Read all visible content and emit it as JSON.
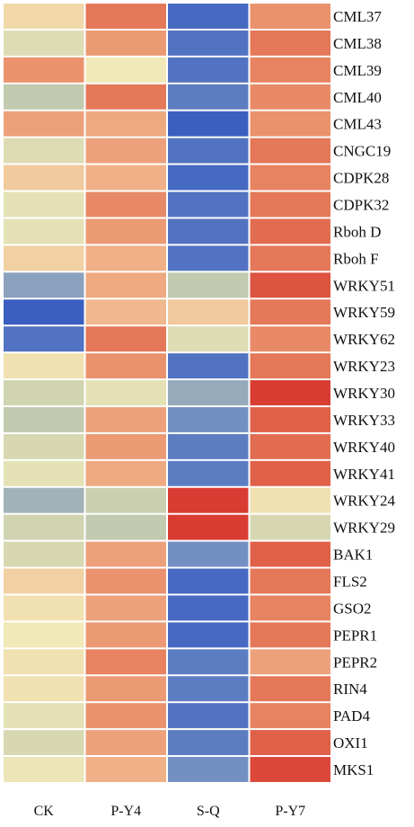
{
  "chart_data": {
    "type": "heatmap",
    "title": "",
    "xlabel": "",
    "ylabel": "",
    "columns": [
      "CK",
      "P-Y4",
      "S-Q",
      "P-Y7"
    ],
    "rows": [
      "CML37",
      "CML38",
      "CML39",
      "CML40",
      "CML43",
      "CNGC19",
      "CDPK28",
      "CDPK32",
      "Rboh D",
      "Rboh F",
      "WRKY51",
      "WRKY59",
      "WRKY62",
      "WRKY23",
      "WRKY30",
      "WRKY33",
      "WRKY40",
      "WRKY41",
      "WRKY24",
      "WRKY29",
      "BAK1",
      "FLS2",
      "GSO2",
      "PEPR1",
      "PEPR2",
      "RIN4",
      "PAD4",
      "OXI1",
      "MKS1"
    ],
    "value_range": [
      -1,
      1
    ],
    "colormap": [
      "#2f55c0",
      "#7c97c3",
      "#c6cdae",
      "#f1e9b8",
      "#f0b38a",
      "#e6805e",
      "#d6302a"
    ],
    "values": [
      [
        0.1,
        0.7,
        -0.9,
        0.55
      ],
      [
        -0.15,
        0.5,
        -0.85,
        0.7
      ],
      [
        0.55,
        0.0,
        -0.85,
        0.65
      ],
      [
        -0.35,
        0.7,
        -0.8,
        0.6
      ],
      [
        0.45,
        0.4,
        -0.95,
        0.55
      ],
      [
        -0.15,
        0.45,
        -0.85,
        0.7
      ],
      [
        0.2,
        0.35,
        -0.9,
        0.65
      ],
      [
        -0.1,
        0.6,
        -0.85,
        0.7
      ],
      [
        -0.1,
        0.5,
        -0.85,
        0.75
      ],
      [
        0.15,
        0.35,
        -0.85,
        0.7
      ],
      [
        -0.6,
        0.4,
        -0.35,
        0.85
      ],
      [
        -0.95,
        0.3,
        0.2,
        0.7
      ],
      [
        -0.85,
        0.7,
        -0.15,
        0.6
      ],
      [
        0.05,
        0.55,
        -0.85,
        0.7
      ],
      [
        -0.25,
        -0.1,
        -0.55,
        0.95
      ],
      [
        -0.35,
        0.45,
        -0.7,
        0.8
      ],
      [
        -0.2,
        0.5,
        -0.8,
        0.75
      ],
      [
        -0.1,
        0.4,
        -0.8,
        0.8
      ],
      [
        -0.5,
        -0.3,
        0.95,
        0.05
      ],
      [
        -0.25,
        -0.35,
        0.95,
        -0.2
      ],
      [
        -0.2,
        0.45,
        -0.7,
        0.8
      ],
      [
        0.15,
        0.55,
        -0.9,
        0.7
      ],
      [
        0.05,
        0.45,
        -0.9,
        0.65
      ],
      [
        0.0,
        0.5,
        -0.9,
        0.7
      ],
      [
        0.05,
        0.65,
        -0.8,
        0.45
      ],
      [
        0.05,
        0.5,
        -0.8,
        0.7
      ],
      [
        -0.1,
        0.55,
        -0.85,
        0.65
      ],
      [
        -0.2,
        0.45,
        -0.8,
        0.8
      ],
      [
        -0.05,
        0.35,
        -0.7,
        0.9
      ]
    ]
  }
}
